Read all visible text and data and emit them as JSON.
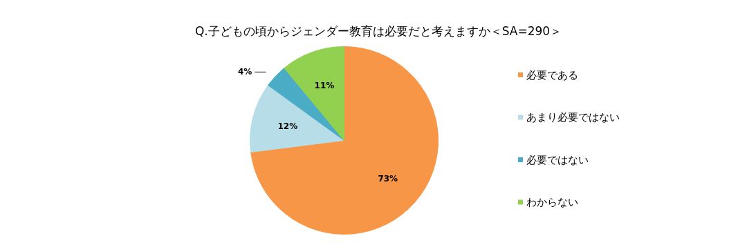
{
  "chart_data": {
    "type": "pie",
    "title": "Q.子どもの頃からジェンダー教育は必要だと考えますか＜SA=290＞",
    "categories": [
      "必要である",
      "あまり必要ではない",
      "必要ではない",
      "わからない"
    ],
    "values": [
      73,
      12,
      4,
      11
    ],
    "colors": [
      "#f79646",
      "#b7dee8",
      "#4bacc6",
      "#92d050"
    ],
    "value_labels": [
      "73%",
      "12%",
      "4%",
      "11%"
    ],
    "legend": "right"
  }
}
